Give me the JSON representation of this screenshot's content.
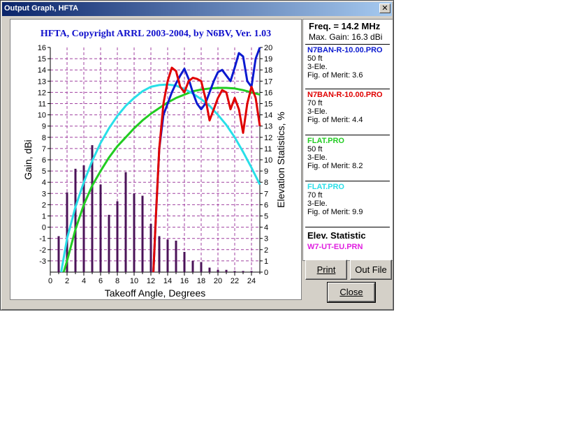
{
  "window": {
    "title": "Output Graph, HFTA"
  },
  "colors": {
    "blue": "#0b1ad0",
    "red": "#e00000",
    "green": "#22cc22",
    "cyan": "#29dfe8",
    "histogram": "#4b1358"
  },
  "chart_data": {
    "type": "line",
    "title": "HFTA, Copyright ARRL 2003-2004, by N6BV, Ver. 1.03",
    "xlabel": "Takeoff Angle, Degrees",
    "ylabel": "Gain, dBi",
    "y2label": "Elevation Statistics, %",
    "xlim": [
      0,
      25
    ],
    "ylim": [
      -4,
      16
    ],
    "y2lim": [
      0,
      20
    ],
    "xticks": [
      "0",
      "2",
      "4",
      "6",
      "8",
      "10",
      "12",
      "14",
      "16",
      "18",
      "20",
      "22",
      "24"
    ],
    "yticks": [
      "-3",
      "-2",
      "-1",
      "0",
      "1",
      "2",
      "3",
      "4",
      "5",
      "6",
      "7",
      "8",
      "9",
      "10",
      "11",
      "12",
      "13",
      "14",
      "15",
      "16"
    ],
    "y2ticks": [
      "0",
      "1",
      "2",
      "3",
      "4",
      "5",
      "6",
      "7",
      "8",
      "9",
      "10",
      "11",
      "12",
      "13",
      "14",
      "15",
      "16",
      "17",
      "18",
      "19",
      "20"
    ],
    "series": [
      {
        "name": "N7BAN-R-10.00.PRO (50 ft)",
        "color": "#0b1ad0",
        "x": [
          12.3,
          12.6,
          13,
          13.5,
          14,
          14.5,
          15,
          15.5,
          16,
          16.5,
          17,
          17.5,
          18,
          18.5,
          19,
          19.5,
          20,
          20.5,
          21,
          21.5,
          22,
          22.5,
          23,
          23.5,
          24,
          24.5,
          25
        ],
        "y": [
          -4,
          1,
          7,
          10,
          11,
          12,
          12.8,
          13.5,
          14.1,
          13.2,
          12,
          11,
          10.5,
          11,
          12,
          13,
          13.8,
          14,
          13.5,
          13,
          14.2,
          15.5,
          15.2,
          13,
          12.5,
          15,
          16
        ]
      },
      {
        "name": "N7BAN-R-10.00.PRO (70 ft)",
        "color": "#e00000",
        "x": [
          12.3,
          12.6,
          13,
          13.5,
          14,
          14.5,
          15,
          15.5,
          16,
          16.5,
          17,
          17.5,
          18,
          18.5,
          19,
          19.5,
          20,
          20.5,
          21,
          21.5,
          22,
          22.5,
          23,
          23.5,
          24,
          24.5,
          25
        ],
        "y": [
          -4,
          1,
          7,
          11,
          13,
          14.2,
          13.9,
          12.5,
          12,
          13,
          13.3,
          13.2,
          13,
          11.5,
          9.5,
          10.5,
          11.5,
          12.2,
          12,
          10.5,
          11.5,
          10.5,
          8.4,
          11,
          12.5,
          11.5,
          9
        ]
      },
      {
        "name": "FLAT.PRO (50 ft)",
        "color": "#22cc22",
        "x": [
          1.6,
          2,
          3,
          4,
          5,
          6,
          7,
          8,
          9,
          10,
          11,
          12,
          13,
          14,
          15,
          16,
          17,
          18,
          19,
          20,
          21,
          22,
          23,
          24,
          25
        ],
        "y": [
          -4,
          -3,
          -0.2,
          2,
          3.7,
          5,
          6.2,
          7.2,
          8,
          8.8,
          9.5,
          10.1,
          10.6,
          11.1,
          11.5,
          11.8,
          12.1,
          12.25,
          12.35,
          12.4,
          12.4,
          12.35,
          12.2,
          12,
          11.8
        ]
      },
      {
        "name": "FLAT.PRO (70 ft)",
        "color": "#29dfe8",
        "x": [
          1.3,
          2,
          3,
          4,
          5,
          6,
          7,
          8,
          9,
          10,
          11,
          12,
          13,
          14,
          15,
          16,
          17,
          18,
          19,
          20,
          21,
          22,
          23,
          24,
          25
        ],
        "y": [
          -4,
          -1,
          1.8,
          4,
          5.9,
          7.5,
          8.8,
          9.9,
          10.8,
          11.5,
          12.1,
          12.5,
          12.65,
          12.7,
          12.6,
          12.3,
          11.9,
          11.4,
          10.8,
          10,
          9.1,
          8,
          6.7,
          5.3,
          3.8
        ]
      },
      {
        "name": "W7-UT-EU.PRN",
        "color": "#4b1358",
        "x": [
          1,
          2,
          3,
          4,
          5,
          6,
          7,
          8,
          9,
          10,
          11,
          12,
          13,
          14,
          15,
          16,
          17,
          18,
          19,
          20,
          21,
          22,
          23,
          24
        ],
        "y": [
          3.2,
          7.1,
          9.2,
          9.5,
          11.3,
          7.8,
          5.1,
          6.3,
          8.9,
          7.0,
          6.8,
          4.3,
          3.2,
          2.9,
          2.8,
          1.8,
          1.0,
          0.9,
          0.4,
          0.2,
          0.2,
          0.1,
          0.1,
          0.1
        ]
      }
    ]
  },
  "panel": {
    "freq": "Freq. = 14.2 MHz",
    "max_gain": "Max. Gain: 16.3 dBi",
    "entries": [
      {
        "file": "N7BAN-R-10.00.PRO",
        "color": "#0b1ad0",
        "height": "50 ft",
        "ant": "3-Ele.",
        "fom": "Fig. of Merit:  3.6"
      },
      {
        "file": "N7BAN-R-10.00.PRO",
        "color": "#e00000",
        "height": "70 ft",
        "ant": "3-Ele.",
        "fom": "Fig. of Merit:  4.4"
      },
      {
        "file": "FLAT.PRO",
        "color": "#22cc22",
        "height": "50 ft",
        "ant": "3-Ele.",
        "fom": "Fig. of Merit:  8.2"
      },
      {
        "file": "FLAT.PRO",
        "color": "#29dfe8",
        "height": "70 ft",
        "ant": "3-Ele.",
        "fom": "Fig. of Merit:  9.9"
      }
    ],
    "elev_heading": "Elev. Statistic",
    "elev_file": "W7-UT-EU.PRN",
    "elev_color": "#e020e0"
  },
  "buttons": {
    "print": "Print",
    "outfile": "Out File",
    "close": "Close"
  }
}
